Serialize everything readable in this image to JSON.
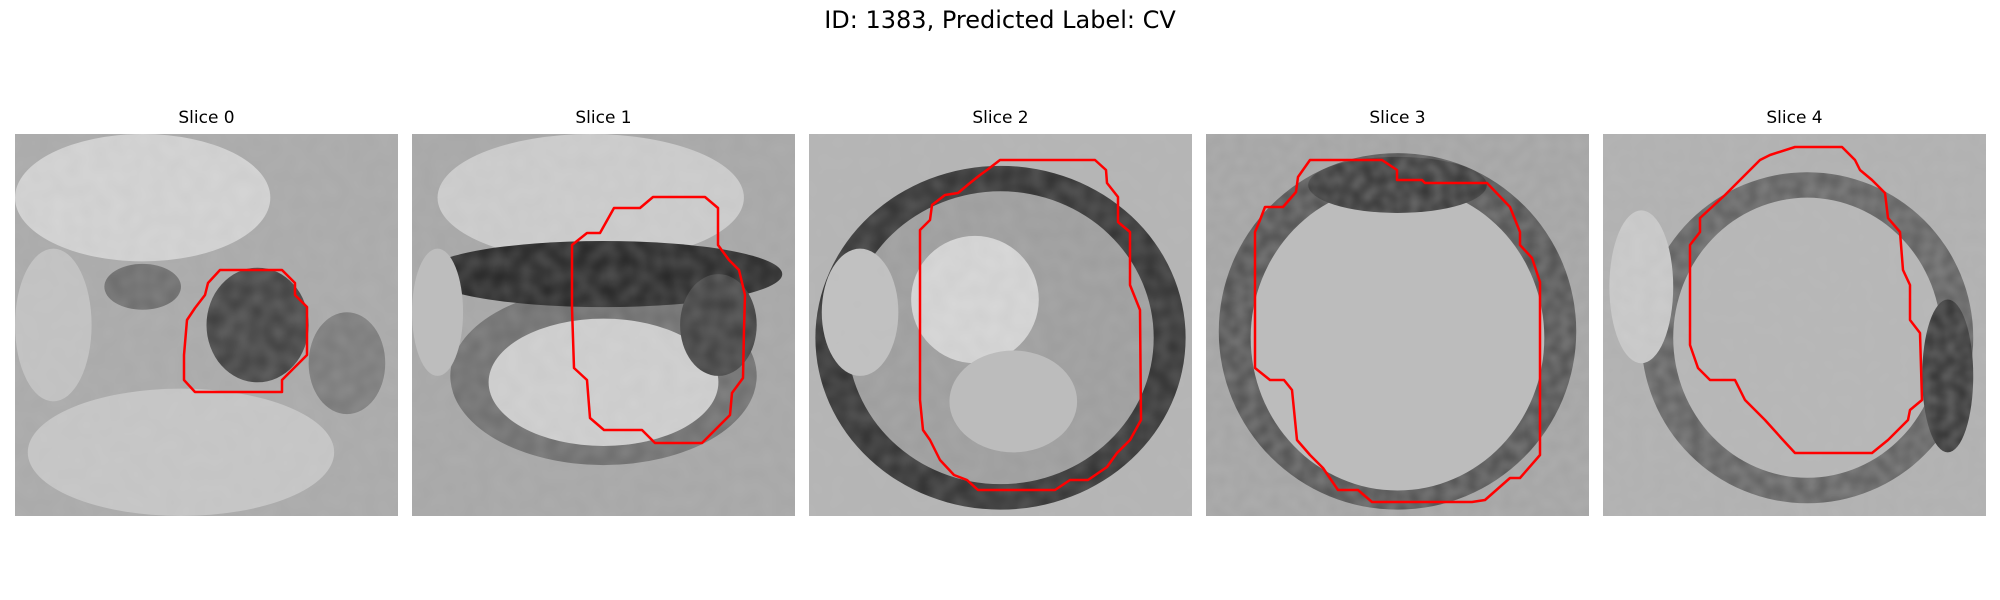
{
  "figure": {
    "title": "ID: 1383, Predicted Label: CV"
  },
  "panels": [
    {
      "title": "Slice 0"
    },
    {
      "title": "Slice 1"
    },
    {
      "title": "Slice 2"
    },
    {
      "title": "Slice 3"
    },
    {
      "title": "Slice 4"
    }
  ],
  "colors": {
    "contour": "#ff0000",
    "background": "#ffffff"
  }
}
